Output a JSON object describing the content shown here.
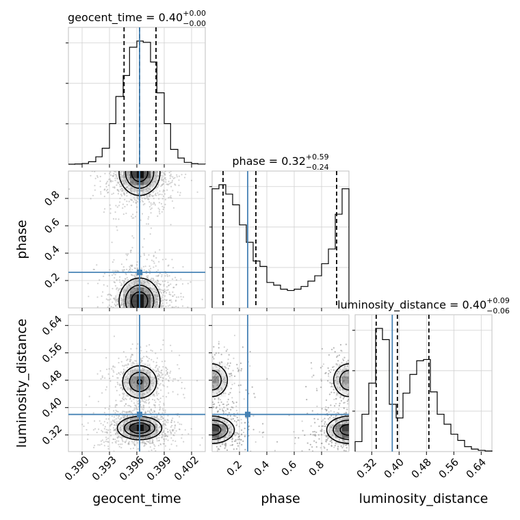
{
  "chart_data": {
    "type": "corner",
    "parameters": [
      "geocent_time",
      "phase",
      "luminosity_distance"
    ],
    "truth_color": "#4682b4",
    "titles": {
      "geocent_time": {
        "name": "geocent_time",
        "median": "0.40",
        "plus": "+0.00",
        "minus": "−0.00"
      },
      "phase": {
        "name": "phase",
        "median": "0.32",
        "plus": "+0.59",
        "minus": "−0.24"
      },
      "luminosity_distance": {
        "name": "luminosity_distance",
        "median": "0.40",
        "plus": "+0.09",
        "minus": "−0.06"
      }
    },
    "axes": {
      "geocent_time": {
        "range": [
          0.3885,
          0.4035
        ],
        "ticks": [
          0.39,
          0.393,
          0.396,
          0.399,
          0.402
        ],
        "tick_labels": [
          "0.390",
          "0.393",
          "0.396",
          "0.399",
          "0.402"
        ],
        "truth": 0.3963
      },
      "phase": {
        "range": [
          0.0,
          1.0
        ],
        "ticks": [
          0.2,
          0.4,
          0.6,
          0.8
        ],
        "tick_labels": [
          "0.2",
          "0.4",
          "0.6",
          "0.8"
        ],
        "truth": 0.26
      },
      "luminosity_distance": {
        "range": [
          0.2714,
          0.6714
        ],
        "ticks": [
          0.32,
          0.4,
          0.48,
          0.56,
          0.64
        ],
        "tick_labels": [
          "0.32",
          "0.40",
          "0.48",
          "0.56",
          "0.64"
        ],
        "truth": 0.38
      }
    },
    "histograms": {
      "geocent_time": {
        "edges": [
          0.3885,
          0.3892,
          0.39,
          0.3907,
          0.3915,
          0.3922,
          0.393,
          0.3937,
          0.3945,
          0.3952,
          0.396,
          0.3967,
          0.3975,
          0.3982,
          0.399,
          0.3997,
          0.4005,
          0.4012,
          0.402,
          0.4027,
          0.4035
        ],
        "counts": [
          0,
          0.002,
          0.006,
          0.02,
          0.06,
          0.13,
          0.33,
          0.55,
          0.72,
          0.95,
          1.0,
          0.99,
          0.83,
          0.58,
          0.33,
          0.12,
          0.05,
          0.015,
          0.005,
          0.001
        ],
        "quantiles": [
          0.3946,
          0.3963,
          0.3981
        ]
      },
      "phase": {
        "edges": [
          0.0,
          0.05,
          0.1,
          0.15,
          0.2,
          0.25,
          0.3,
          0.35,
          0.4,
          0.45,
          0.5,
          0.55,
          0.6,
          0.65,
          0.7,
          0.75,
          0.8,
          0.85,
          0.9,
          0.95,
          1.0
        ],
        "counts": [
          0.89,
          0.92,
          0.85,
          0.77,
          0.62,
          0.49,
          0.35,
          0.31,
          0.19,
          0.17,
          0.14,
          0.13,
          0.14,
          0.16,
          0.2,
          0.24,
          0.33,
          0.44,
          0.7,
          0.89
        ],
        "quantiles": [
          0.08,
          0.32,
          0.91
        ]
      },
      "luminosity_distance": {
        "edges": [
          0.2714,
          0.2914,
          0.3114,
          0.3314,
          0.3514,
          0.3714,
          0.3914,
          0.4114,
          0.4314,
          0.4514,
          0.4714,
          0.4914,
          0.5114,
          0.5314,
          0.5514,
          0.5714,
          0.5914,
          0.6114,
          0.6314,
          0.6514,
          0.6714
        ],
        "counts": [
          0.08,
          0.3,
          0.55,
          0.99,
          0.9,
          0.38,
          0.27,
          0.47,
          0.62,
          0.73,
          0.74,
          0.48,
          0.3,
          0.22,
          0.14,
          0.09,
          0.04,
          0.02,
          0.01,
          0.005
        ],
        "quantiles": [
          0.333,
          0.395,
          0.487
        ]
      }
    },
    "pairs": [
      {
        "x": "geocent_time",
        "y": "phase",
        "modes": [
          {
            "mx": 0.3963,
            "my": 0.99,
            "sx": 0.0012,
            "sy": 0.09
          },
          {
            "mx": 0.3963,
            "my": 0.05,
            "sx": 0.0012,
            "sy": 0.09
          }
        ],
        "levels": [
          0.18,
          0.45,
          0.78
        ]
      },
      {
        "x": "geocent_time",
        "y": "luminosity_distance",
        "modes": [
          {
            "mx": 0.3963,
            "my": 0.34,
            "sx": 0.0013,
            "sy": 0.018
          },
          {
            "mx": 0.3963,
            "my": 0.475,
            "sx": 0.0011,
            "sy": 0.028,
            "w": 0.72
          }
        ],
        "levels": [
          0.2,
          0.5,
          0.8
        ]
      },
      {
        "x": "phase",
        "y": "luminosity_distance",
        "modes": [
          {
            "mx": 0.0,
            "my": 0.335,
            "sx": 0.09,
            "sy": 0.022
          },
          {
            "mx": 1.0,
            "my": 0.335,
            "sx": 0.09,
            "sy": 0.022
          },
          {
            "mx": 0.0,
            "my": 0.48,
            "sx": 0.07,
            "sy": 0.03,
            "w": 0.7
          },
          {
            "mx": 1.0,
            "my": 0.48,
            "sx": 0.07,
            "sy": 0.03,
            "w": 0.7
          }
        ],
        "levels": [
          0.2,
          0.45,
          0.78
        ]
      }
    ]
  }
}
